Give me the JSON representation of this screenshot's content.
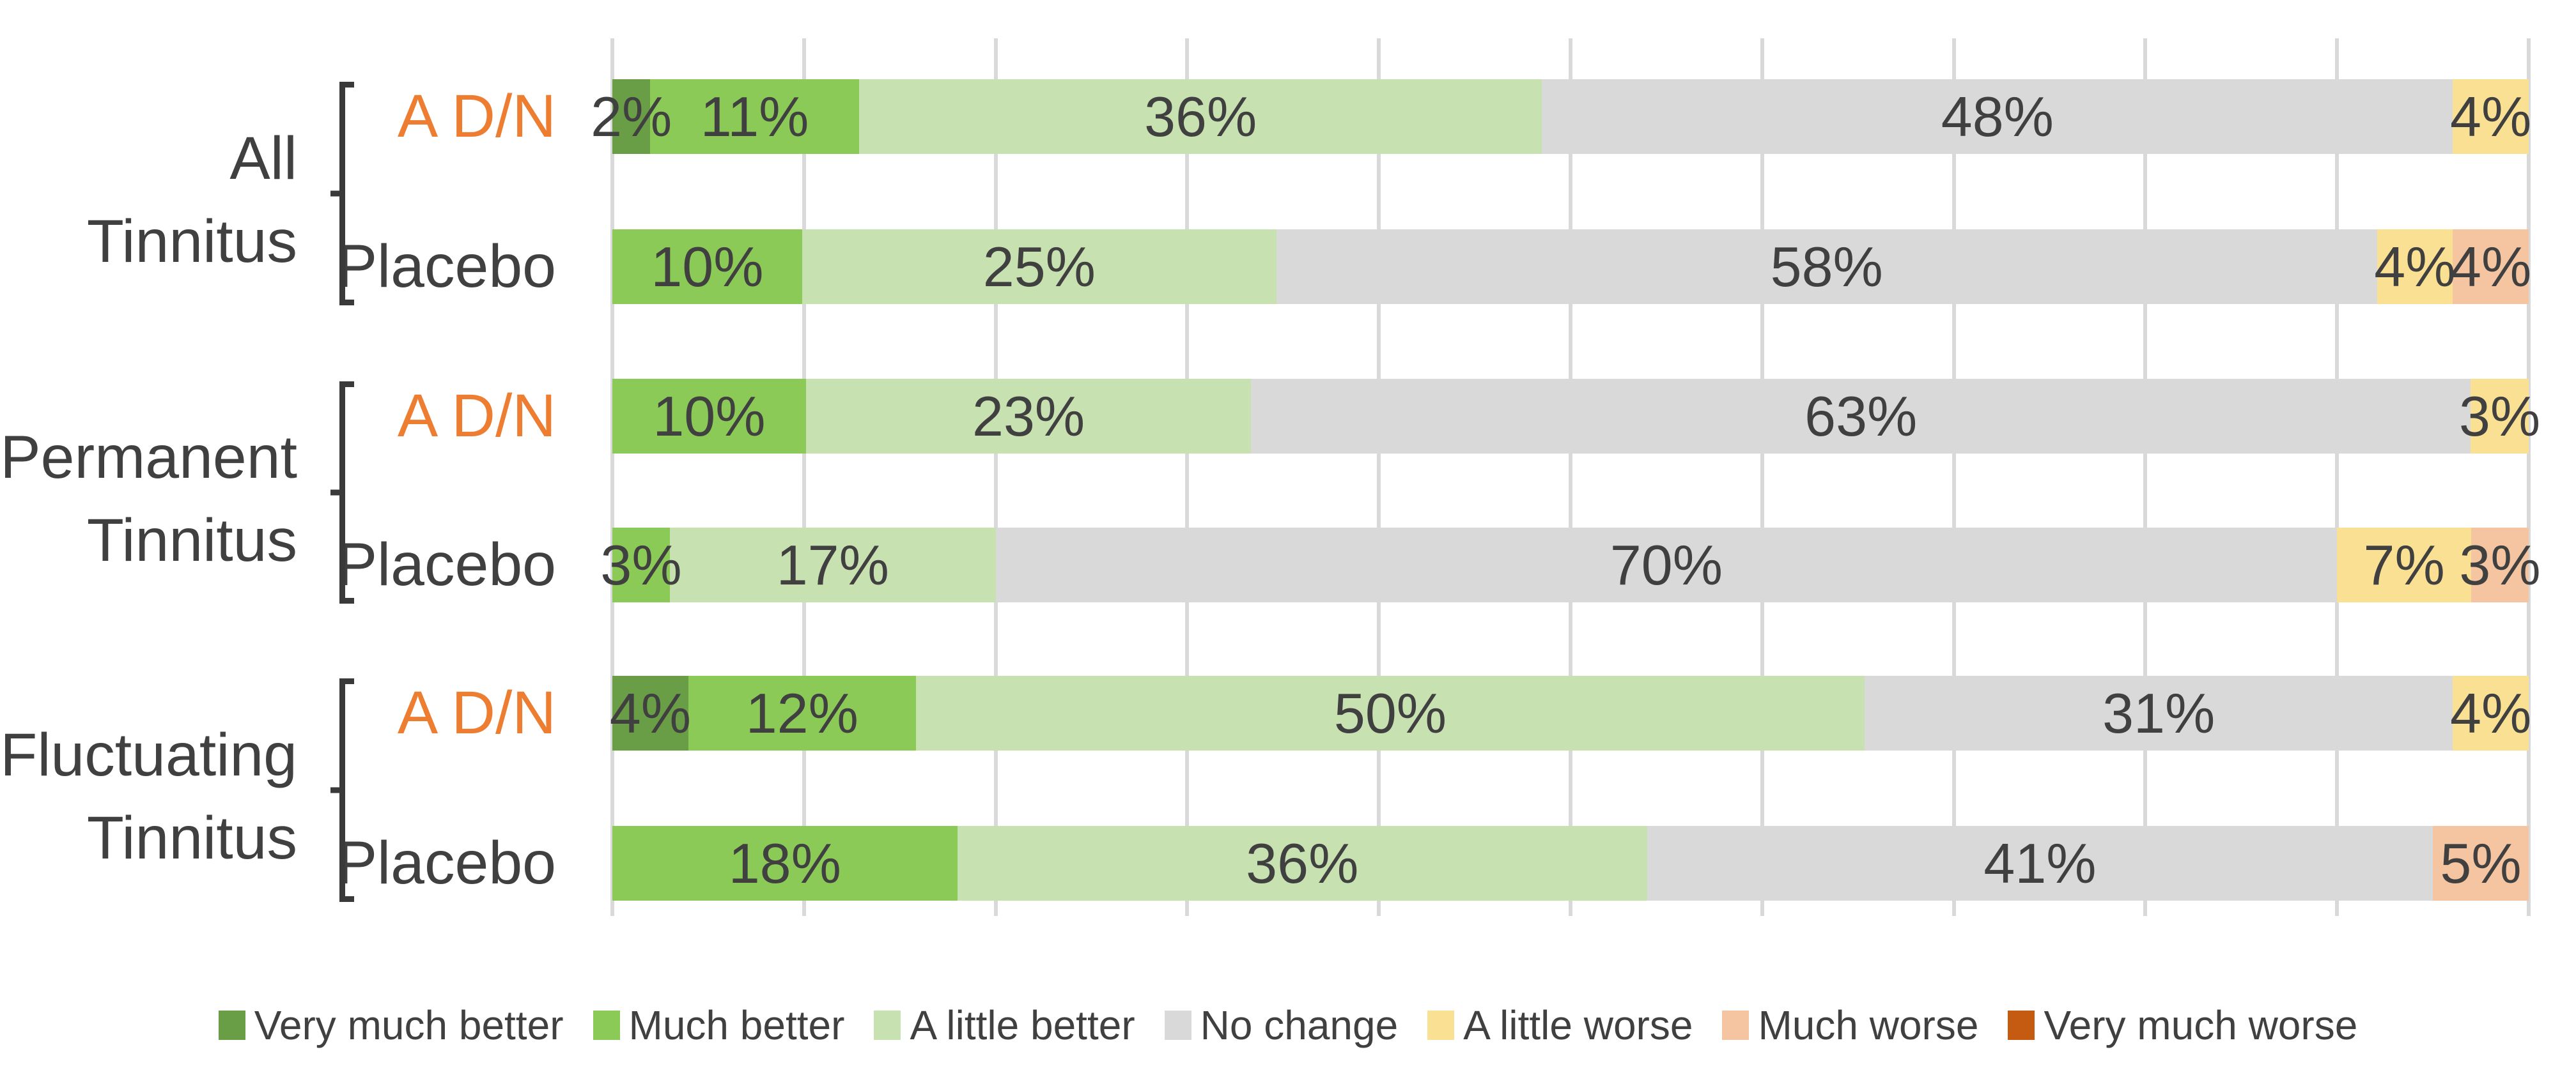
{
  "chart_data": {
    "type": "bar",
    "orientation": "horizontal",
    "stacked": true,
    "value_unit": "%",
    "title": "",
    "axis": {
      "min": 0,
      "max": 100,
      "gridline_step": 10,
      "tick_labels_visible": false,
      "grid": true
    },
    "text_color": "#404040",
    "gridline_color": "#D9D9D9",
    "legend": {
      "position": "bottom",
      "entries": [
        {
          "label": "Very much better",
          "color": "#6A9E46"
        },
        {
          "label": "Much better",
          "color": "#8CCA57"
        },
        {
          "label": "A little better",
          "color": "#C7E1B0"
        },
        {
          "label": "No change",
          "color": "#D9D9D9"
        },
        {
          "label": "A little worse",
          "color": "#FAE093"
        },
        {
          "label": "Much worse",
          "color": "#F4C5A0"
        },
        {
          "label": "Very much worse",
          "color": "#C55A11"
        }
      ]
    },
    "series_label_colors": {
      "A D/N": "#ED7D31",
      "Placebo": "#404040"
    },
    "groups": [
      {
        "label_lines": [
          "All",
          "Tinnitus"
        ],
        "rows": [
          {
            "series": "A D/N",
            "segments": [
              {
                "category": "Very much better",
                "value": 2,
                "label": "2%"
              },
              {
                "category": "Much better",
                "value": 11,
                "label": "11%"
              },
              {
                "category": "A little better",
                "value": 36,
                "label": "36%"
              },
              {
                "category": "No change",
                "value": 48,
                "label": "48%"
              },
              {
                "category": "A little worse",
                "value": 4,
                "label": "4%"
              }
            ]
          },
          {
            "series": "Placebo",
            "segments": [
              {
                "category": "Much better",
                "value": 10,
                "label": "10%"
              },
              {
                "category": "A little better",
                "value": 25,
                "label": "25%"
              },
              {
                "category": "No change",
                "value": 58,
                "label": "58%"
              },
              {
                "category": "A little worse",
                "value": 4,
                "label": "4%"
              },
              {
                "category": "Much worse",
                "value": 4,
                "label": "4%"
              }
            ]
          }
        ]
      },
      {
        "label_lines": [
          "Permanent",
          "Tinnitus"
        ],
        "rows": [
          {
            "series": "A D/N",
            "segments": [
              {
                "category": "Much better",
                "value": 10,
                "label": "10%"
              },
              {
                "category": "A little better",
                "value": 23,
                "label": "23%"
              },
              {
                "category": "No change",
                "value": 63,
                "label": "63%"
              },
              {
                "category": "A little worse",
                "value": 3,
                "label": "3%"
              }
            ]
          },
          {
            "series": "Placebo",
            "segments": [
              {
                "category": "Much better",
                "value": 3,
                "label": "3%"
              },
              {
                "category": "A little better",
                "value": 17,
                "label": "17%"
              },
              {
                "category": "No change",
                "value": 70,
                "label": "70%"
              },
              {
                "category": "A little worse",
                "value": 7,
                "label": "7%"
              },
              {
                "category": "Much worse",
                "value": 3,
                "label": "3%"
              }
            ]
          }
        ]
      },
      {
        "label_lines": [
          "Fluctuating",
          "Tinnitus"
        ],
        "rows": [
          {
            "series": "A D/N",
            "segments": [
              {
                "category": "Very much better",
                "value": 4,
                "label": "4%"
              },
              {
                "category": "Much better",
                "value": 12,
                "label": "12%"
              },
              {
                "category": "A little better",
                "value": 50,
                "label": "50%"
              },
              {
                "category": "No change",
                "value": 31,
                "label": "31%"
              },
              {
                "category": "A little worse",
                "value": 4,
                "label": "4%"
              }
            ]
          },
          {
            "series": "Placebo",
            "segments": [
              {
                "category": "Much better",
                "value": 18,
                "label": "18%"
              },
              {
                "category": "A little better",
                "value": 36,
                "label": "36%"
              },
              {
                "category": "No change",
                "value": 41,
                "label": "41%"
              },
              {
                "category": "Much worse",
                "value": 5,
                "label": "5%"
              }
            ]
          }
        ]
      }
    ]
  }
}
